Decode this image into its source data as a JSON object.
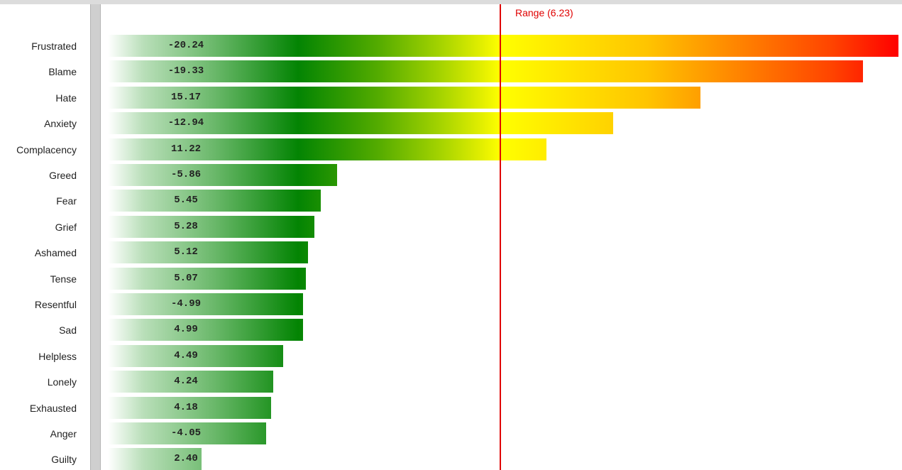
{
  "chart_data": {
    "type": "bar",
    "orientation": "horizontal",
    "categories": [
      "Frustrated",
      "Blame",
      "Hate",
      "Anxiety",
      "Complacency",
      "Greed",
      "Fear",
      "Grief",
      "Ashamed",
      "Tense",
      "Resentful",
      "Sad",
      "Helpless",
      "Lonely",
      "Exhausted",
      "Anger",
      "Guilty"
    ],
    "values": [
      -20.24,
      -19.33,
      15.17,
      -12.94,
      11.22,
      -5.86,
      5.45,
      5.28,
      5.12,
      5.07,
      -4.99,
      4.99,
      4.49,
      4.24,
      4.18,
      -4.05,
      2.4
    ],
    "value_labels": [
      "-20.24",
      "-19.33",
      "15.17",
      "-12.94",
      "11.22",
      "-5.86",
      "5.45",
      "5.28",
      "5.12",
      "5.07",
      "-4.99",
      "4.99",
      "4.49",
      "4.24",
      "4.18",
      "-4.05",
      "2.40"
    ],
    "bar_length": "absolute value",
    "reference_line": {
      "value": 6.23,
      "label": "Range (6.23)",
      "color": "#e00000"
    },
    "color_scale": [
      "#ffffff",
      "#038403",
      "#ffff00",
      "#ff0000"
    ],
    "title": "",
    "xlabel": "",
    "ylabel": "",
    "grid": false,
    "legend": "none"
  }
}
